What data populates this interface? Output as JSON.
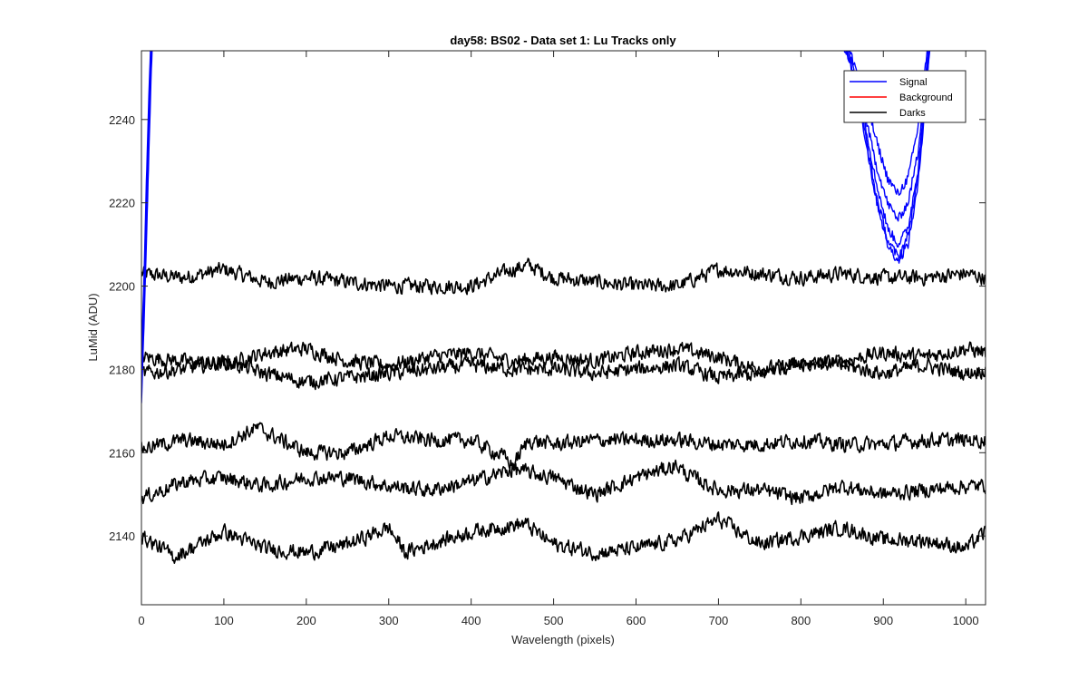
{
  "chart_data": {
    "type": "line",
    "title": "day58: BS02 - Data set 1: Lu Tracks only",
    "xlabel": "Wavelength (pixels)",
    "ylabel": "LuMid (ADU)",
    "xlim": [
      0,
      1024
    ],
    "ylim": [
      2123.5,
      2256.5
    ],
    "x_ticks": [
      0,
      100,
      200,
      300,
      400,
      500,
      600,
      700,
      800,
      900,
      1000
    ],
    "y_ticks": [
      2140,
      2160,
      2180,
      2200,
      2220,
      2240
    ],
    "grid": false,
    "legend_position": "top-right",
    "legend": [
      {
        "label": "Signal",
        "color": "#0000ff"
      },
      {
        "label": "Background",
        "color": "#ff0000"
      },
      {
        "label": "Darks",
        "color": "#000000"
      }
    ],
    "darks": [
      {
        "x": [
          0,
          50,
          100,
          150,
          200,
          250,
          300,
          350,
          400,
          450,
          470,
          500,
          550,
          600,
          650,
          700,
          750,
          800,
          850,
          900,
          950,
          1000,
          1024
        ],
        "y": [
          2203,
          2202,
          2204,
          2201,
          2202,
          2201,
          2200,
          2200,
          2200,
          2204,
          2205,
          2202,
          2201,
          2200,
          2200,
          2204,
          2203,
          2202,
          2203,
          2202,
          2202,
          2203,
          2202
        ]
      },
      {
        "x": [
          0,
          50,
          100,
          150,
          200,
          250,
          300,
          350,
          400,
          450,
          500,
          550,
          600,
          650,
          700,
          750,
          800,
          850,
          900,
          950,
          1000,
          1024
        ],
        "y": [
          2183,
          2182,
          2181,
          2184,
          2185,
          2182,
          2181,
          2183,
          2184,
          2182,
          2183,
          2182,
          2184,
          2185,
          2183,
          2180,
          2181,
          2182,
          2184,
          2183,
          2185,
          2184
        ]
      },
      {
        "x": [
          0,
          50,
          100,
          150,
          200,
          250,
          300,
          350,
          400,
          450,
          500,
          550,
          600,
          650,
          700,
          750,
          800,
          850,
          900,
          950,
          1000,
          1024
        ],
        "y": [
          2179,
          2180,
          2182,
          2179,
          2177,
          2178,
          2179,
          2180,
          2181,
          2180,
          2180,
          2179,
          2180,
          2181,
          2178,
          2179,
          2182,
          2181,
          2179,
          2181,
          2179,
          2180
        ]
      },
      {
        "x": [
          0,
          50,
          100,
          140,
          200,
          250,
          300,
          350,
          400,
          440,
          450,
          470,
          500,
          550,
          600,
          650,
          700,
          750,
          800,
          850,
          900,
          950,
          1000,
          1024
        ],
        "y": [
          2161,
          2163,
          2162,
          2166,
          2160,
          2160,
          2164,
          2163,
          2163,
          2159,
          2157,
          2163,
          2162,
          2163,
          2163,
          2163,
          2162,
          2162,
          2163,
          2162,
          2162,
          2163,
          2163,
          2163
        ]
      },
      {
        "x": [
          0,
          50,
          100,
          150,
          200,
          250,
          300,
          350,
          400,
          450,
          500,
          550,
          600,
          650,
          660,
          700,
          750,
          800,
          850,
          900,
          950,
          1000,
          1024
        ],
        "y": [
          2149,
          2153,
          2154,
          2152,
          2154,
          2154,
          2152,
          2151,
          2153,
          2156,
          2154,
          2150,
          2154,
          2157,
          2155,
          2151,
          2151,
          2149,
          2152,
          2150,
          2151,
          2152,
          2152
        ]
      },
      {
        "x": [
          0,
          40,
          100,
          150,
          200,
          250,
          300,
          320,
          350,
          400,
          465,
          500,
          550,
          600,
          650,
          700,
          750,
          800,
          850,
          900,
          950,
          1000,
          1024
        ],
        "y": [
          2140,
          2135,
          2141,
          2137,
          2136,
          2138,
          2142,
          2136,
          2138,
          2141,
          2143,
          2138,
          2136,
          2137,
          2139,
          2144,
          2138,
          2140,
          2142,
          2139,
          2139,
          2137,
          2141
        ]
      }
    ],
    "signal_left": [
      {
        "x": [
          0,
          3,
          6,
          9,
          12,
          14
        ],
        "y": [
          2172,
          2190,
          2210,
          2232,
          2252,
          2262
        ]
      },
      {
        "x": [
          0,
          3,
          6,
          9,
          12,
          14
        ],
        "y": [
          2175,
          2193,
          2214,
          2236,
          2255,
          2265
        ]
      },
      {
        "x": [
          0,
          3,
          6,
          9,
          12,
          14
        ],
        "y": [
          2178,
          2195,
          2218,
          2240,
          2258,
          2268
        ]
      },
      {
        "x": [
          0,
          3,
          6,
          9,
          12,
          14
        ],
        "y": [
          2181,
          2198,
          2221,
          2243,
          2260,
          2270
        ]
      },
      {
        "x": [
          0,
          3,
          6,
          9,
          12,
          14
        ],
        "y": [
          2184,
          2201,
          2225,
          2246,
          2262,
          2272
        ]
      }
    ],
    "signal_right": [
      {
        "x": [
          845,
          860,
          875,
          890,
          905,
          918,
          930,
          942,
          953,
          960
        ],
        "y": [
          2262,
          2256,
          2248,
          2236,
          2226,
          2222,
          2226,
          2238,
          2256,
          2266
        ]
      },
      {
        "x": [
          845,
          860,
          875,
          890,
          905,
          918,
          930,
          942,
          953,
          960
        ],
        "y": [
          2262,
          2255,
          2244,
          2230,
          2220,
          2216,
          2220,
          2232,
          2254,
          2266
        ]
      },
      {
        "x": [
          845,
          860,
          875,
          890,
          905,
          918,
          930,
          942,
          953,
          960
        ],
        "y": [
          2262,
          2254,
          2242,
          2226,
          2214,
          2210,
          2214,
          2228,
          2252,
          2266
        ]
      },
      {
        "x": [
          845,
          860,
          875,
          890,
          905,
          918,
          930,
          942,
          953,
          960
        ],
        "y": [
          2262,
          2254,
          2240,
          2223,
          2211,
          2207,
          2212,
          2226,
          2250,
          2266
        ]
      },
      {
        "x": [
          845,
          860,
          875,
          890,
          905,
          918,
          930,
          942,
          953,
          960
        ],
        "y": [
          2262,
          2253,
          2239,
          2222,
          2210,
          2206,
          2210,
          2224,
          2249,
          2266
        ]
      }
    ]
  }
}
